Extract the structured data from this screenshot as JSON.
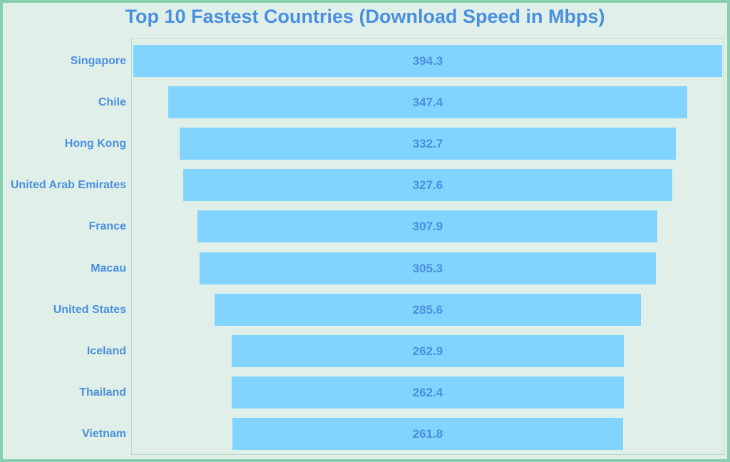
{
  "chart_data": {
    "type": "bar",
    "subtype": "funnel",
    "title": "Top 10 Fastest Countries (Download Speed in Mbps)",
    "categories": [
      "Singapore",
      "Chile",
      "Hong Kong",
      "United Arab Emirates",
      "France",
      "Macau",
      "United States",
      "Iceland",
      "Thailand",
      "Vietnam"
    ],
    "values": [
      394.3,
      347.4,
      332.7,
      327.6,
      307.9,
      305.3,
      285.6,
      262.9,
      262.4,
      261.8
    ],
    "data_labels": [
      "394.3",
      "347.4",
      "332.7",
      "327.6",
      "307.9",
      "305.3",
      "285.6",
      "262.9",
      "262.4",
      "261.8"
    ],
    "xlabel": "",
    "ylabel": "",
    "grid": false,
    "legend": "none",
    "colors": {
      "bar": "#80d4ff",
      "text": "#4a8fe0",
      "background": "#e0f0e8",
      "border": "#88cfb0"
    }
  }
}
